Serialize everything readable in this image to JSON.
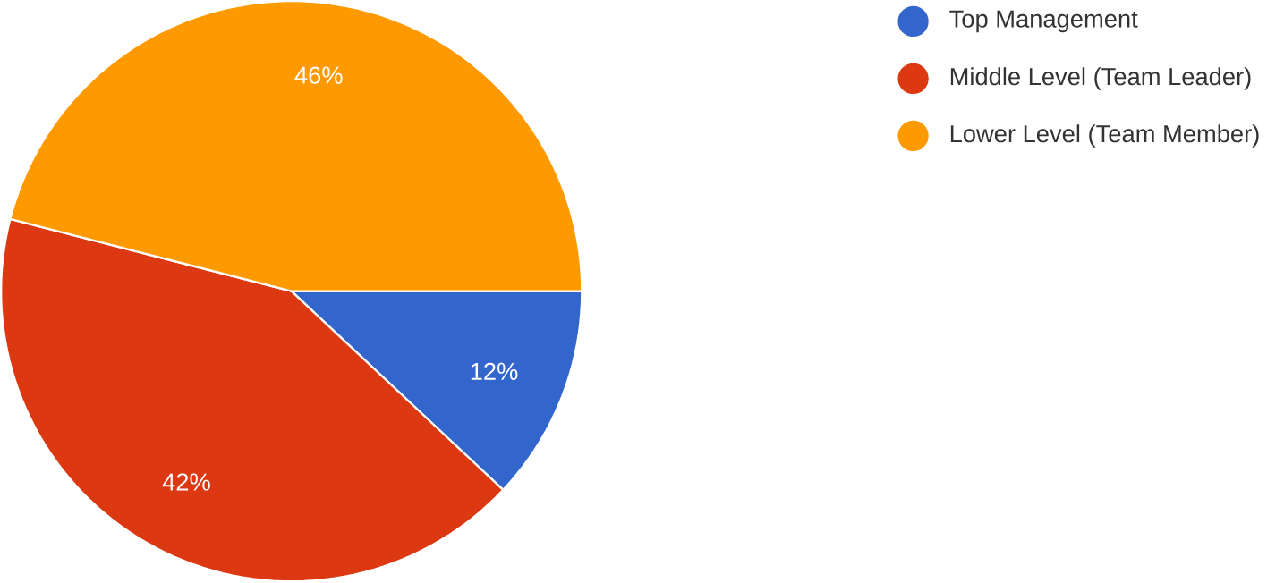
{
  "chart_data": {
    "type": "pie",
    "categories": [
      "Top Management",
      "Middle Level (Team Leader)",
      "Lower Level (Team Member)"
    ],
    "values": [
      12,
      42,
      46
    ],
    "colors": [
      "#3366cc",
      "#dc3912",
      "#ff9900"
    ],
    "value_labels": [
      "12%",
      "42%",
      "46%"
    ],
    "legend": "top right"
  }
}
